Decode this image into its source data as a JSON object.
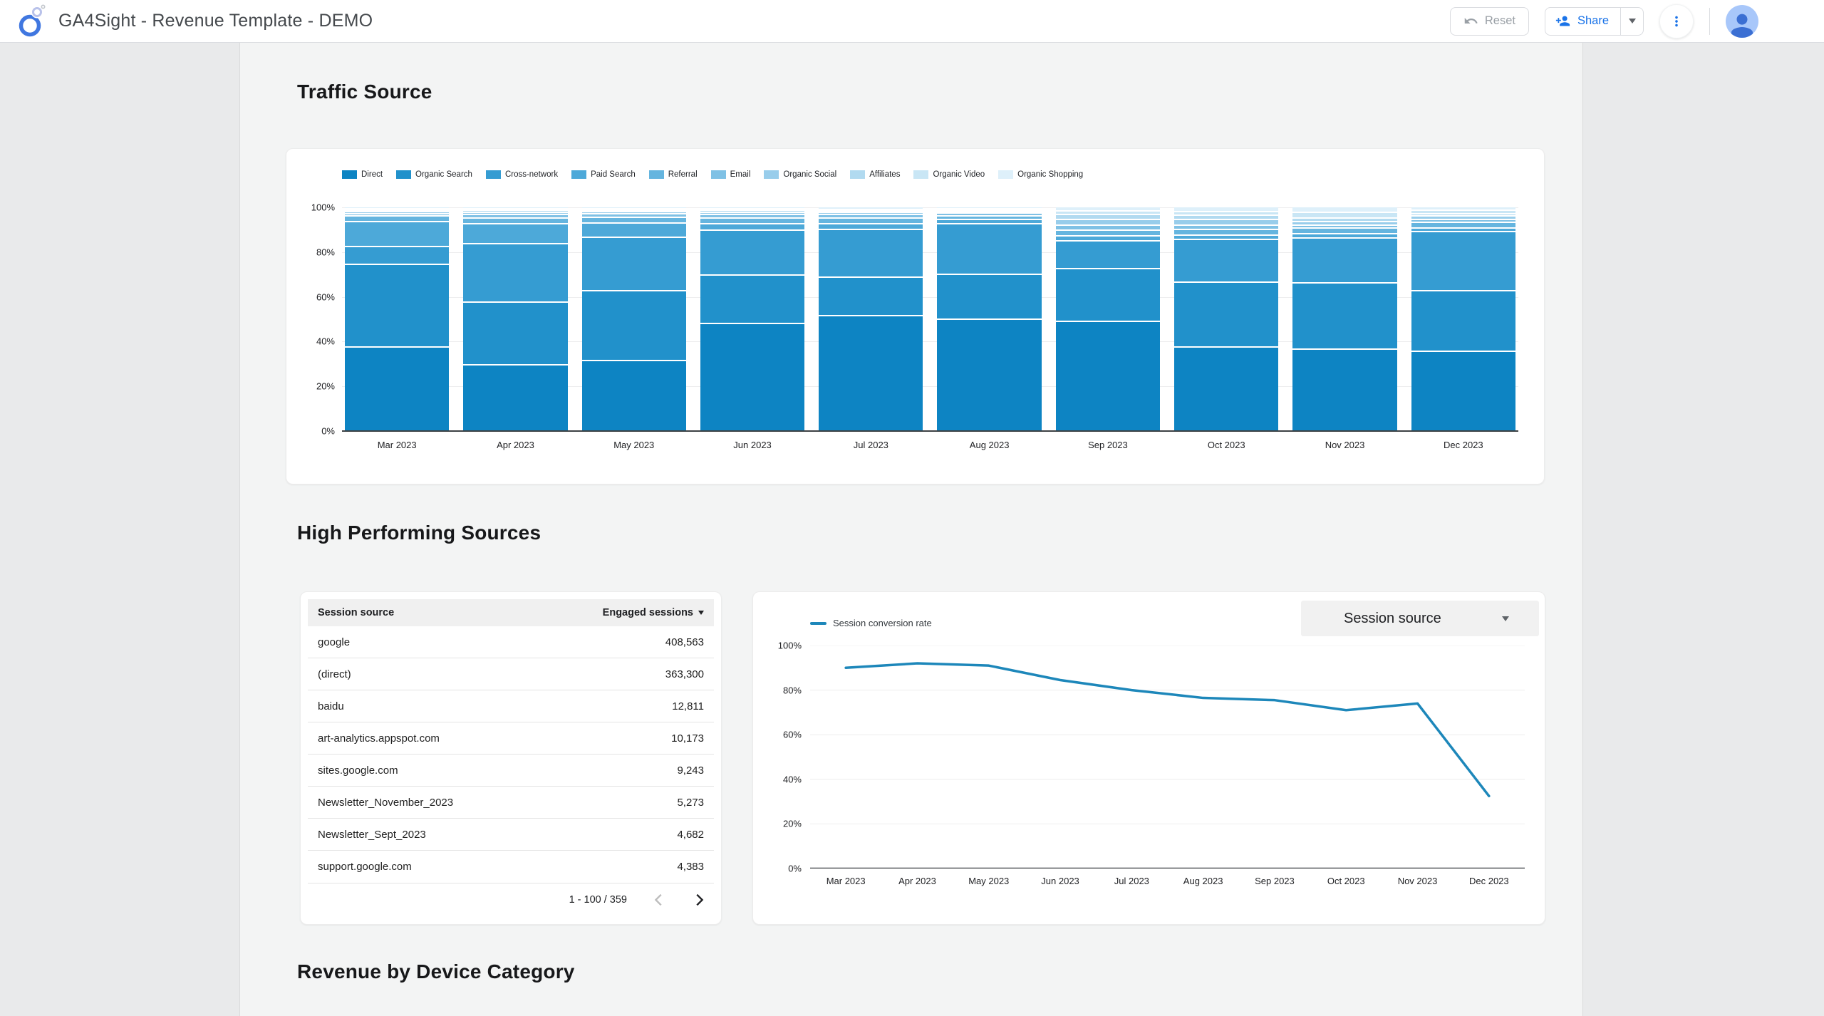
{
  "header": {
    "title": "GA4Sight - Revenue Template - DEMO",
    "reset_label": "Reset",
    "share_label": "Share"
  },
  "icons": {
    "logo": "ga4sight-rings-logo",
    "reset": "undo-arrow",
    "share": "person-add",
    "share_caret": "caret-down",
    "more_menu": "more-vert-dots",
    "avatar": "person",
    "table_sort": "caret-down",
    "pagination_prev": "chevron-left",
    "pagination_next": "chevron-right",
    "dropdown_caret": "caret-down"
  },
  "colors": {
    "palette": [
      "#0d84c3",
      "#2191cb",
      "#359cd2",
      "#4da9d9",
      "#65b5df",
      "#7fc1e5",
      "#98cdeb",
      "#b1daf0",
      "#c9e6f5",
      "#def0fa"
    ],
    "line": "#1d87ba",
    "accent_blue": "#1a73e8",
    "grid": "#ededee",
    "axis": "#3c4043"
  },
  "sections": {
    "traffic_source": "Traffic Source",
    "high_performing": "High Performing Sources",
    "revenue_device": "Revenue by Device Category"
  },
  "chart_data": [
    {
      "type": "bar",
      "stacked": true,
      "percent": true,
      "title": "Traffic Source",
      "categories": [
        "Mar 2023",
        "Apr 2023",
        "May 2023",
        "Jun 2023",
        "Jul 2023",
        "Aug 2023",
        "Sep 2023",
        "Oct 2023",
        "Nov 2023",
        "Dec 2023"
      ],
      "series": [
        {
          "name": "Direct",
          "values": [
            38,
            30,
            32,
            48.5,
            52,
            50.5,
            49.5,
            38,
            37,
            36
          ]
        },
        {
          "name": "Organic Search",
          "values": [
            37,
            28,
            31,
            21.5,
            17,
            20,
            23.5,
            29,
            29.5,
            27
          ]
        },
        {
          "name": "Cross-network",
          "values": [
            8,
            26,
            24,
            20,
            21.5,
            22.5,
            12.5,
            19,
            20,
            26.5
          ]
        },
        {
          "name": "Paid Search",
          "values": [
            11,
            9,
            6.5,
            3,
            2.5,
            2,
            2,
            2,
            2,
            1.5
          ]
        },
        {
          "name": "Referral",
          "values": [
            2.5,
            2.5,
            2.5,
            2.5,
            2.5,
            1.8,
            2.6,
            2.5,
            2.5,
            2.5
          ]
        },
        {
          "name": "Email",
          "values": [
            1.2,
            1.5,
            1.5,
            1.5,
            1.5,
            1,
            2.2,
            2,
            1.5,
            1.5
          ]
        },
        {
          "name": "Organic Social",
          "values": [
            0.8,
            1,
            1,
            1,
            1,
            0.8,
            2.6,
            2.5,
            1.5,
            1.5
          ]
        },
        {
          "name": "Affiliates",
          "values": [
            0.7,
            1,
            0.8,
            1,
            0.8,
            0.6,
            2.1,
            2,
            1.5,
            1
          ]
        },
        {
          "name": "Organic Video",
          "values": [
            0.5,
            0.7,
            0.5,
            0.7,
            0.7,
            0.5,
            1.6,
            1.5,
            2.5,
            1.5
          ]
        },
        {
          "name": "Organic Shopping",
          "values": [
            0.3,
            0.3,
            0.2,
            0.3,
            0.5,
            0.3,
            1.4,
            1.5,
            2,
            1
          ]
        }
      ],
      "ylim": [
        0,
        100
      ],
      "y_ticks": [
        "100%",
        "80%",
        "60%",
        "40%",
        "20%",
        "0%"
      ],
      "legend_position": "top"
    },
    {
      "type": "line",
      "title": "Session conversion rate",
      "categories": [
        "Mar 2023",
        "Apr 2023",
        "May 2023",
        "Jun 2023",
        "Jul 2023",
        "Aug 2023",
        "Sep 2023",
        "Oct 2023",
        "Nov 2023",
        "Dec 2023"
      ],
      "series": [
        {
          "name": "Session conversion rate",
          "values": [
            90,
            92,
            91,
            84.5,
            80,
            76.5,
            75.5,
            71,
            74,
            32.5
          ]
        }
      ],
      "ylim": [
        0,
        100
      ],
      "y_ticks": [
        "100%",
        "80%",
        "60%",
        "40%",
        "20%",
        "0%"
      ],
      "legend_position": "top-left"
    }
  ],
  "table": {
    "columns": [
      "Session source",
      "Engaged sessions"
    ],
    "rows": [
      {
        "source": "google",
        "sessions": "408,563"
      },
      {
        "source": "(direct)",
        "sessions": "363,300"
      },
      {
        "source": "baidu",
        "sessions": "12,811"
      },
      {
        "source": "art-analytics.appspot.com",
        "sessions": "10,173"
      },
      {
        "source": "sites.google.com",
        "sessions": "9,243"
      },
      {
        "source": "Newsletter_November_2023",
        "sessions": "5,273"
      },
      {
        "source": "Newsletter_Sept_2023",
        "sessions": "4,682"
      },
      {
        "source": "support.google.com",
        "sessions": "4,383"
      }
    ],
    "pagination": "1 - 100 / 359"
  },
  "line_card": {
    "legend": "Session conversion rate",
    "dropdown_label": "Session source"
  }
}
